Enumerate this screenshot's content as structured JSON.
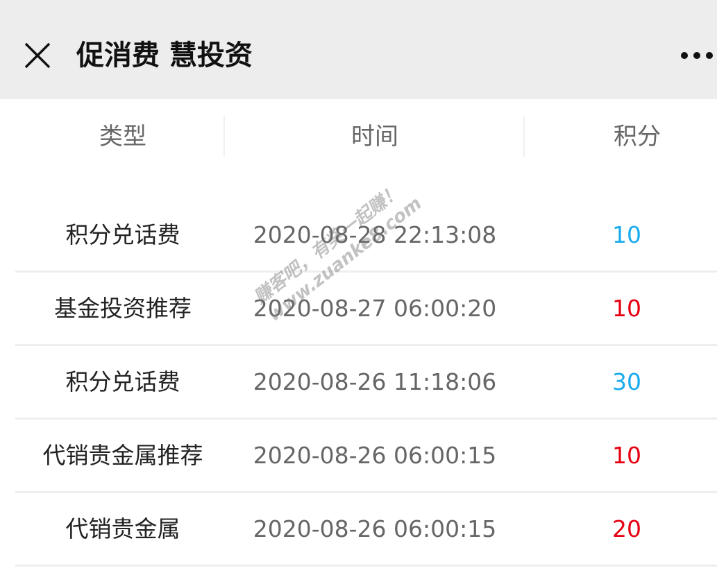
{
  "header": {
    "title": "促消费 慧投资",
    "close_icon": "close-icon",
    "more_icon": "more-horizontal-icon"
  },
  "table": {
    "columns": [
      "类型",
      "时间",
      "积分"
    ],
    "rows": [
      {
        "type": "积分兑话费",
        "time": "2020-08-28 22:13:08",
        "points": "10",
        "points_color": "#1aabee"
      },
      {
        "type": "基金投资推荐",
        "time": "2020-08-27 06:00:20",
        "points": "10",
        "points_color": "#e60012"
      },
      {
        "type": "积分兑话费",
        "time": "2020-08-26 11:18:06",
        "points": "30",
        "points_color": "#1aabee"
      },
      {
        "type": "代销贵金属推荐",
        "time": "2020-08-26 06:00:15",
        "points": "10",
        "points_color": "#e60012"
      },
      {
        "type": "代销贵金属",
        "time": "2020-08-26 06:00:15",
        "points": "20",
        "points_color": "#e60012"
      }
    ]
  },
  "watermark": {
    "line1": "赚客吧，有奖一起赚！",
    "line2": "www.zuanke8.com"
  }
}
